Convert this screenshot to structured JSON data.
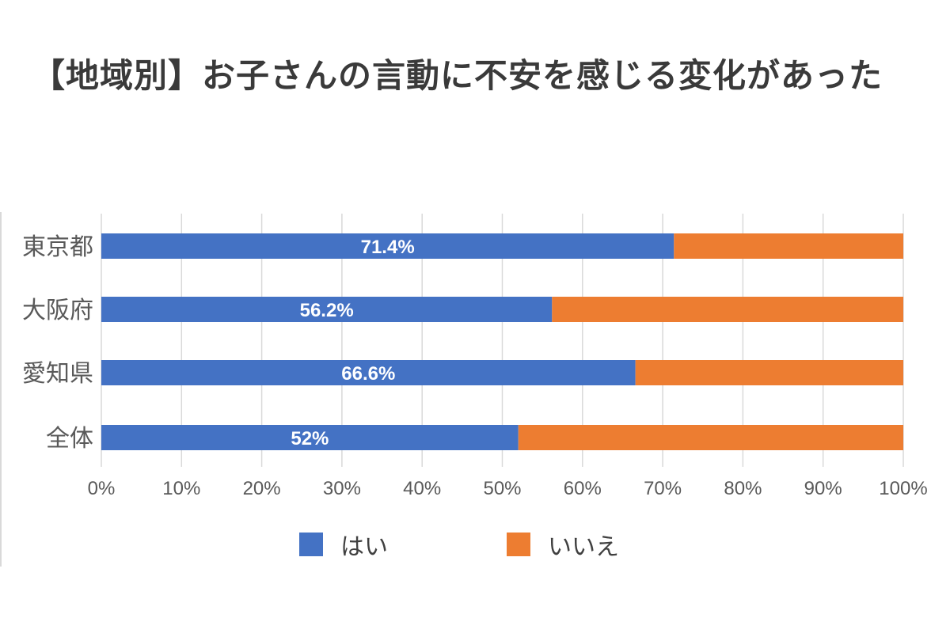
{
  "chart_data": {
    "type": "bar",
    "orientation": "horizontal",
    "stacked": true,
    "title": "【地域別】お子さんの言動に不安を感じる変化があった",
    "categories": [
      "東京都",
      "大阪府",
      "愛知県",
      "全体"
    ],
    "series": [
      {
        "name": "はい",
        "color": "#4472C4",
        "values": [
          71.4,
          56.2,
          66.6,
          52
        ],
        "labels": [
          "71.4%",
          "56.2%",
          "66.6%",
          "52%"
        ]
      },
      {
        "name": "いいえ",
        "color": "#ED7D31",
        "values": [
          28.6,
          43.8,
          33.4,
          48
        ]
      }
    ],
    "x_ticks": [
      "0%",
      "10%",
      "20%",
      "30%",
      "40%",
      "50%",
      "60%",
      "70%",
      "80%",
      "90%",
      "100%"
    ],
    "xlim": [
      0,
      100
    ],
    "grid": "vertical",
    "legend_position": "bottom"
  }
}
